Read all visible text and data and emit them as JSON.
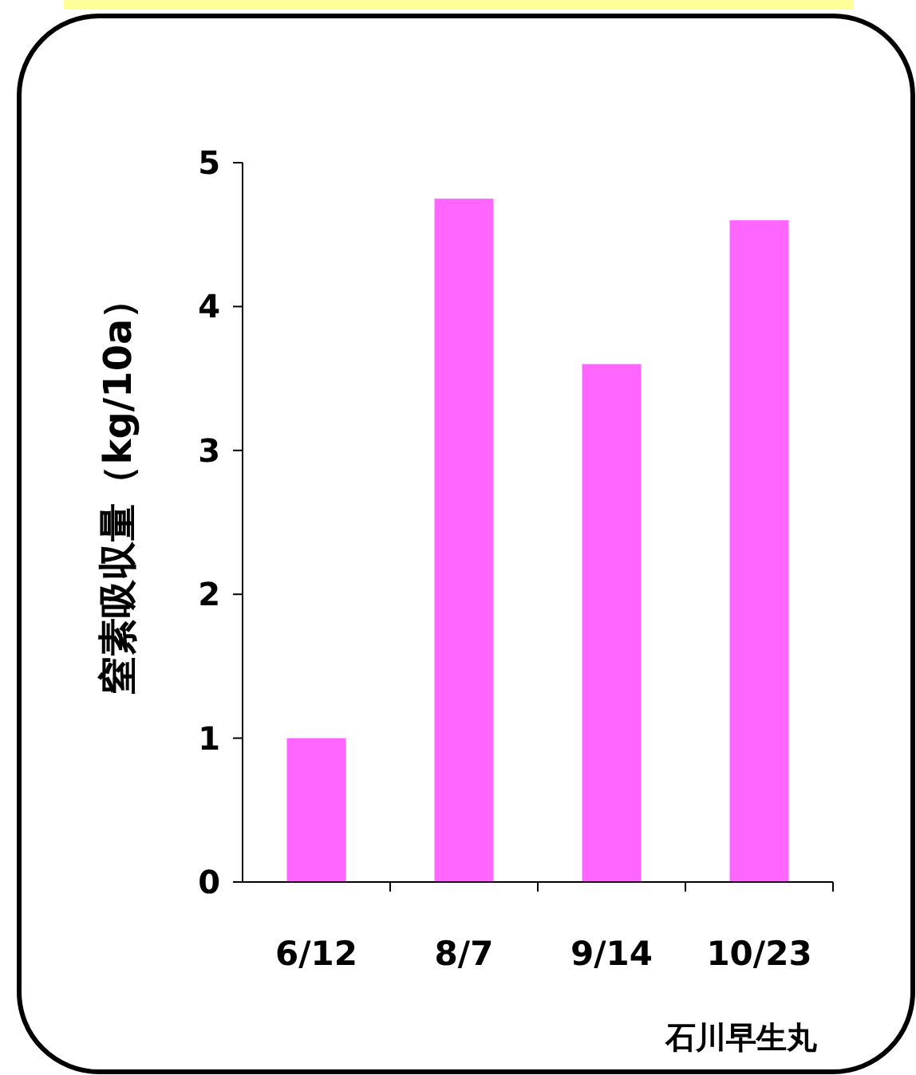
{
  "chart_data": {
    "type": "bar",
    "ylabel": "窒素吸収量（kg/10a）",
    "xlabel": "石川早生丸",
    "categories": [
      "6/12",
      "8/7",
      "9/14",
      "10/23"
    ],
    "values": [
      1.0,
      4.75,
      3.6,
      4.6
    ],
    "color": "#ff66ff",
    "ylim": [
      0,
      5
    ],
    "yticks": [
      0,
      1,
      2,
      3,
      4,
      5
    ]
  }
}
